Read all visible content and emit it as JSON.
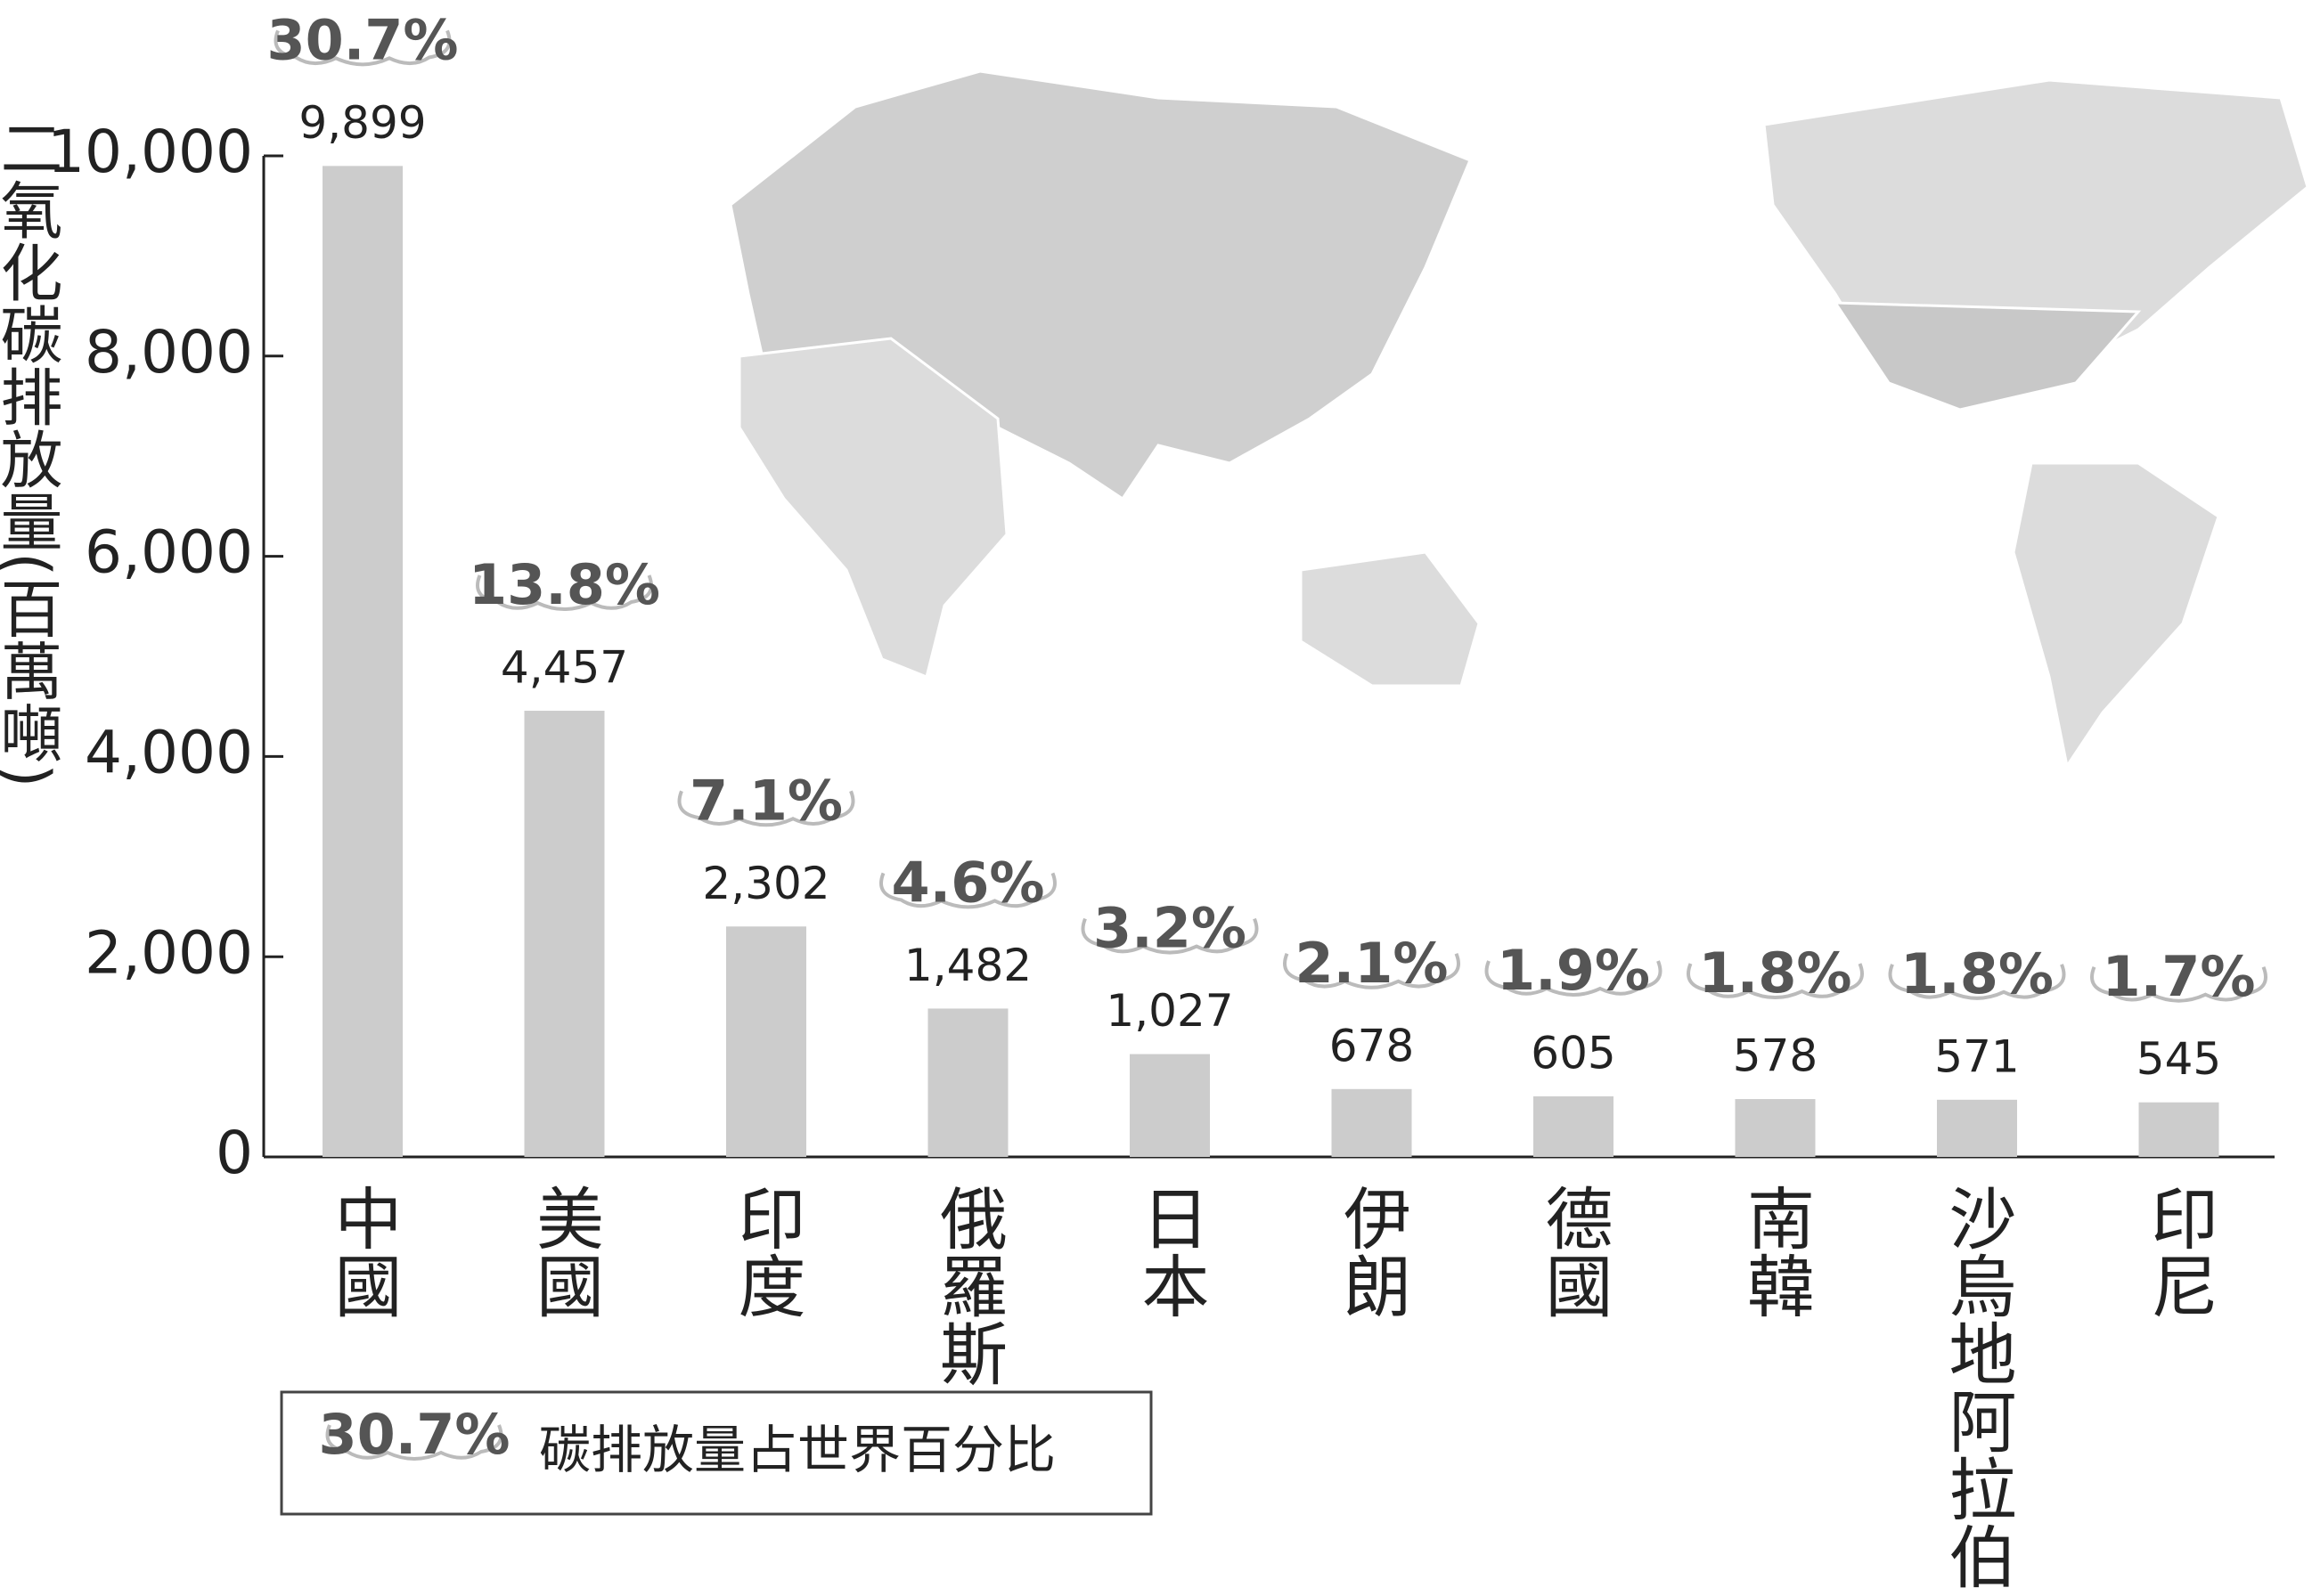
{
  "chart_data": {
    "type": "bar",
    "y_label": "二氧化碳排放量(百萬噸)",
    "categories": [
      "中國",
      "美國",
      "印度",
      "俄羅斯",
      "日本",
      "伊朗",
      "德國",
      "南韓",
      "沙烏地阿拉伯",
      "印尼"
    ],
    "values": [
      9899,
      4457,
      2302,
      1482,
      1027,
      678,
      605,
      578,
      571,
      545
    ],
    "value_labels": [
      "9,899",
      "4,457",
      "2,302",
      "1,482",
      "1,027",
      "678",
      "605",
      "578",
      "571",
      "545"
    ],
    "shares": [
      30.7,
      13.8,
      7.1,
      4.6,
      3.2,
      2.1,
      1.9,
      1.8,
      1.8,
      1.7
    ],
    "share_labels": [
      "30.7%",
      "13.8%",
      "7.1%",
      "4.6%",
      "3.2%",
      "2.1%",
      "1.9%",
      "1.8%",
      "1.8%",
      "1.7%"
    ],
    "color": "#cccccc",
    "ylim": [
      0,
      10000
    ],
    "yticks": [
      0,
      {
        "value": 2000,
        "label": "2,000"
      },
      {
        "value": 4000,
        "label": "4,000"
      },
      {
        "value": 6000,
        "label": "6,000"
      },
      {
        "value": 8000,
        "label": "8,000"
      },
      {
        "value": 10000,
        "label": "10,000"
      }
    ],
    "legend": {
      "sample": "30.7%",
      "text": "碳排放量占世界百分比"
    }
  }
}
